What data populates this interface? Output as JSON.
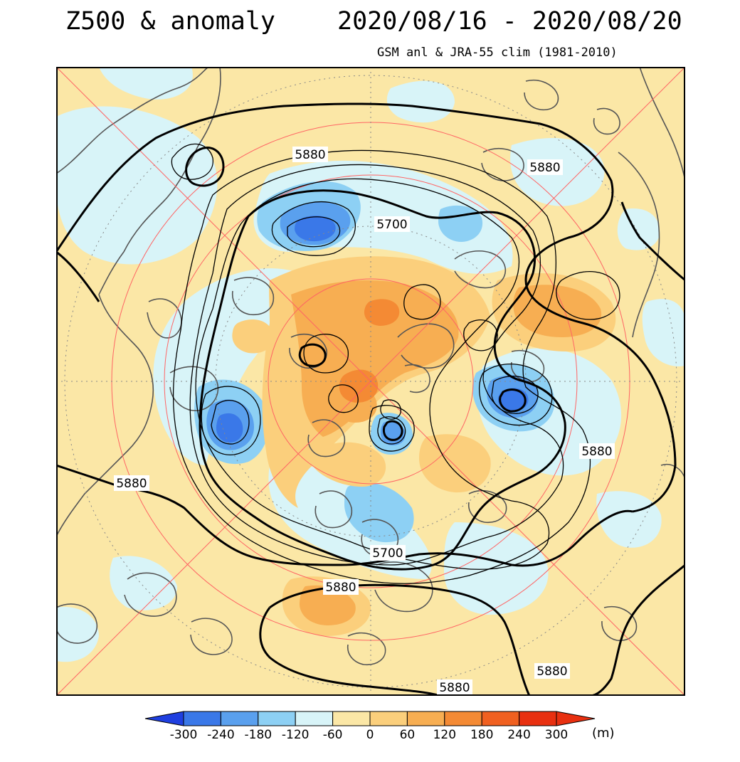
{
  "header": {
    "title": "Z500 & anomaly",
    "date_range": "2020/08/16 - 2020/08/20",
    "subtitle": "GSM anl & JRA-55 clim (1981-2010)"
  },
  "contour_labels": [
    "5880",
    "5880",
    "5700",
    "5880",
    "5880",
    "5700",
    "5880",
    "5880",
    "5880"
  ],
  "colorbar": {
    "ticks": [
      "-300",
      "-240",
      "-180",
      "-120",
      "-60",
      "0",
      "60",
      "120",
      "180",
      "240",
      "300"
    ],
    "unit": "(m)",
    "colors": [
      "#1f3fe0",
      "#3a78e8",
      "#5aa0ee",
      "#8dd0f4",
      "#d8f4f8",
      "#fbe7a6",
      "#fbcf7c",
      "#f7ae52",
      "#f48a34",
      "#f06020",
      "#e83010"
    ]
  },
  "palette": {
    "neutral_warm": "#fbe7a6",
    "light_cold": "#d8f4f8",
    "grid_red": "#ff6464",
    "coast": "#555555"
  }
}
